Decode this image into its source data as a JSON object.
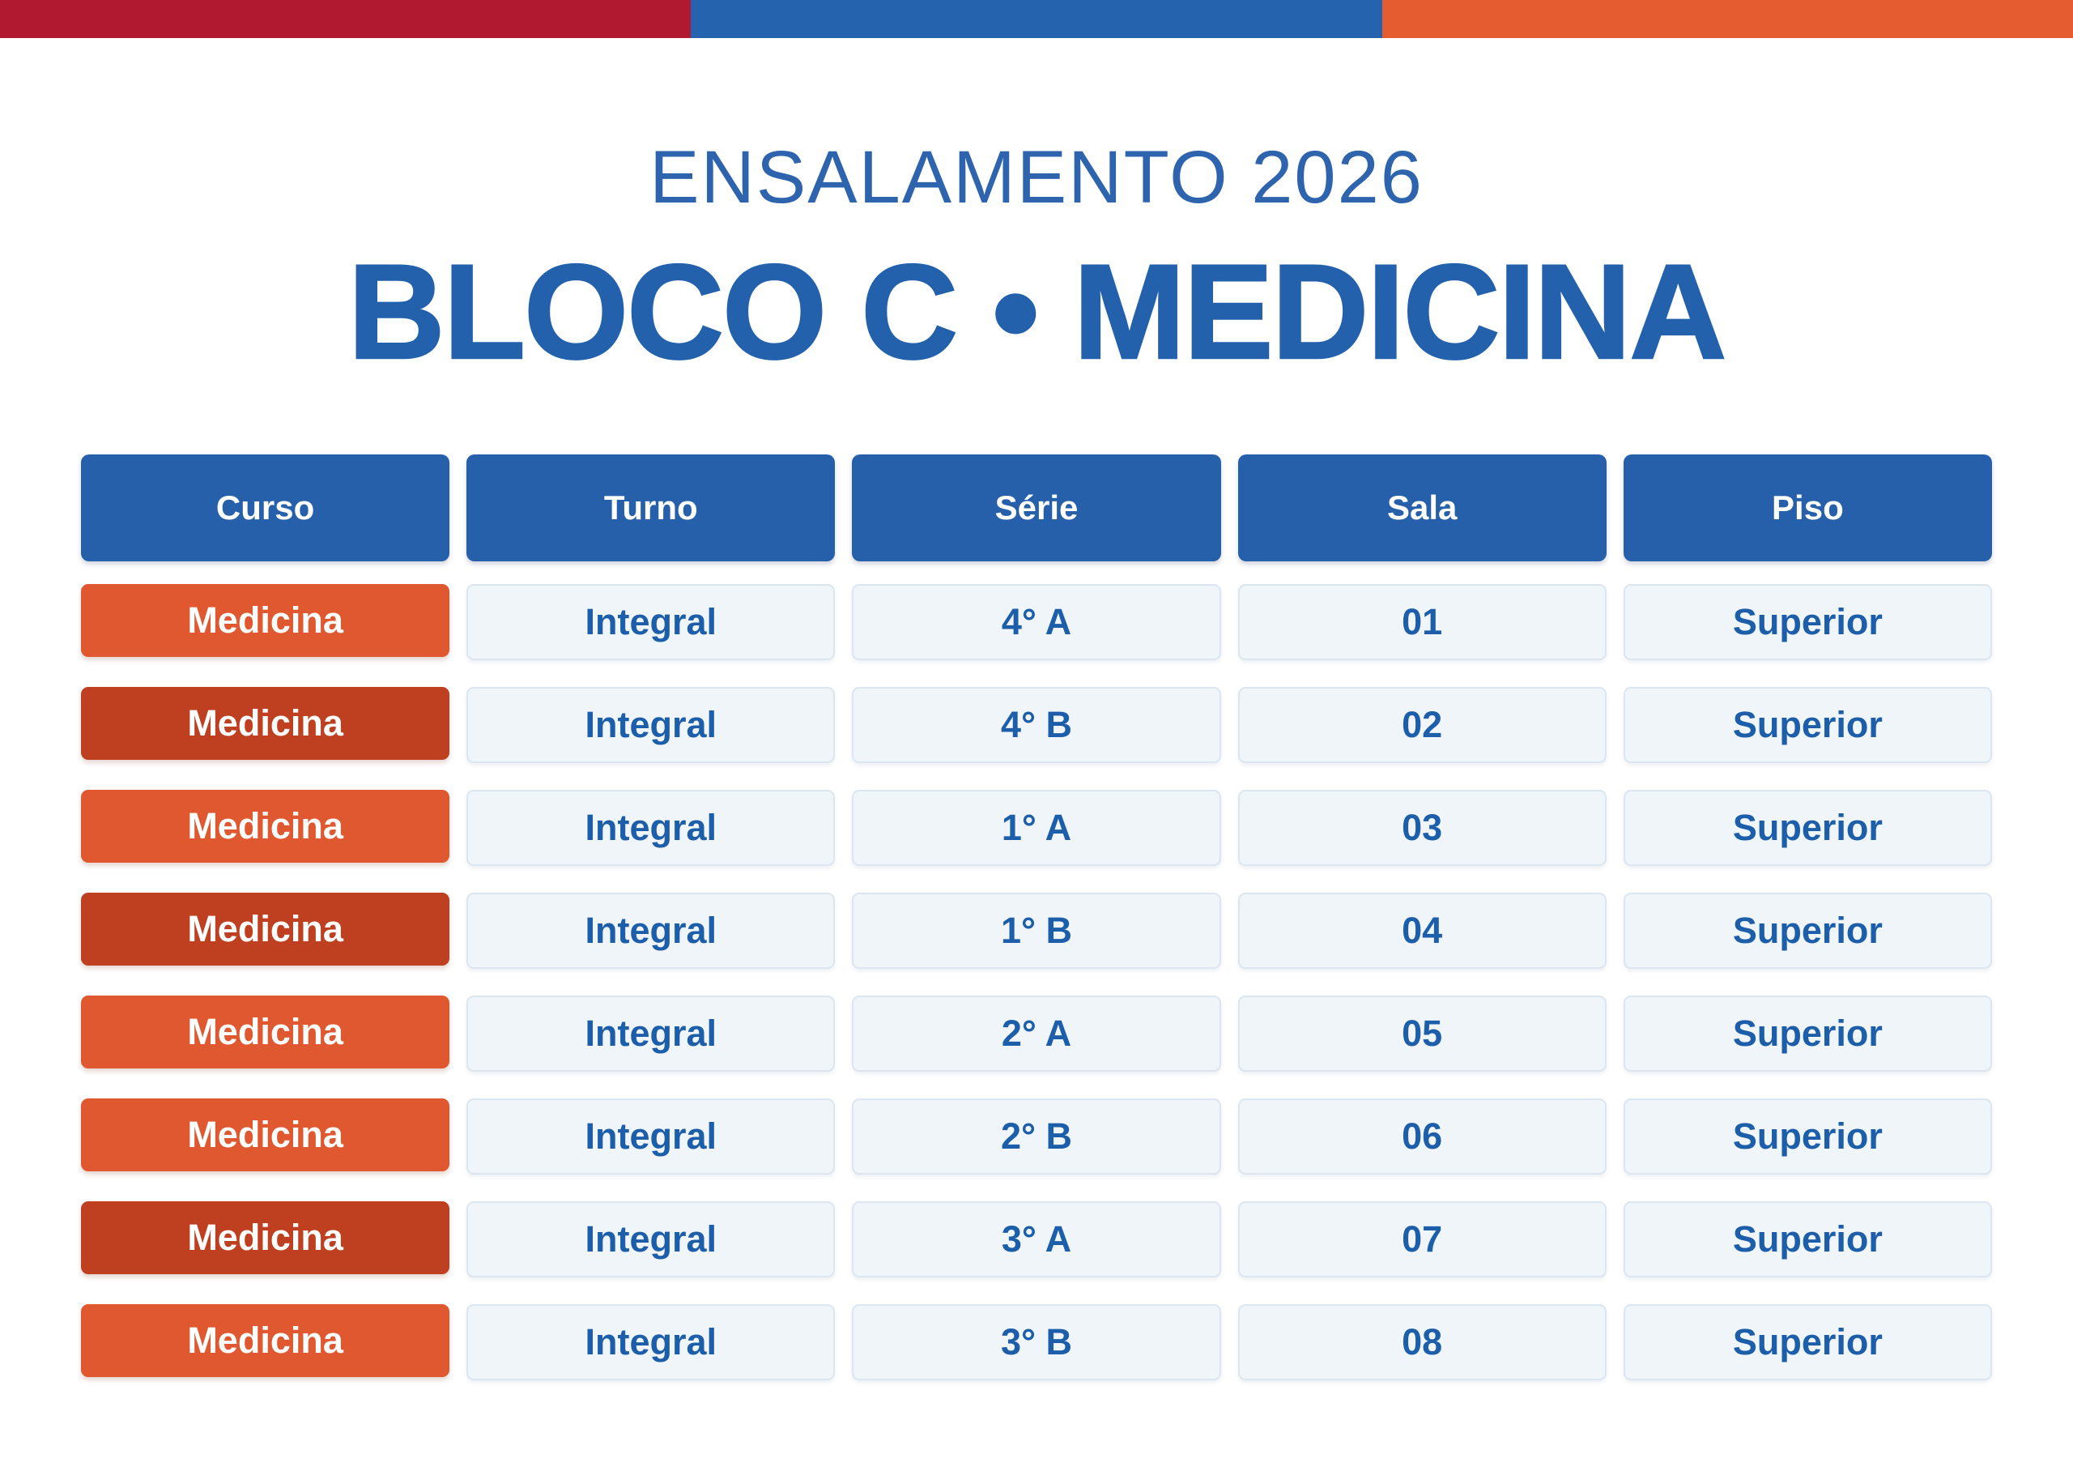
{
  "topbar": {
    "colors": [
      "#b11931",
      "#2563ae",
      "#e55c30"
    ],
    "segment_names": [
      "red",
      "blue",
      "orange"
    ]
  },
  "header": {
    "subtitle": "ENSALAMENTO 2026",
    "title": "BLOCO C • MEDICINA"
  },
  "colors": {
    "title_blue": "#2361ac",
    "header_cell_blue": "#2760aa",
    "curso_orange": "#e0582f",
    "curso_dark_orange": "#bf4021",
    "light_cell_bg": "#f0f5fa",
    "light_cell_border": "#dbe6f1",
    "cell_text_blue": "#1c5ea9"
  },
  "table": {
    "columns": [
      "Curso",
      "Turno",
      "Série",
      "Sala",
      "Piso"
    ],
    "rows": [
      {
        "curso": "Medicina",
        "turno": "Integral",
        "serie": "4° A",
        "sala": "01",
        "piso": "Superior",
        "curso_style": "light"
      },
      {
        "curso": "Medicina",
        "turno": "Integral",
        "serie": "4° B",
        "sala": "02",
        "piso": "Superior",
        "curso_style": "dark"
      },
      {
        "curso": "Medicina",
        "turno": "Integral",
        "serie": "1° A",
        "sala": "03",
        "piso": "Superior",
        "curso_style": "light"
      },
      {
        "curso": "Medicina",
        "turno": "Integral",
        "serie": "1° B",
        "sala": "04",
        "piso": "Superior",
        "curso_style": "dark"
      },
      {
        "curso": "Medicina",
        "turno": "Integral",
        "serie": "2° A",
        "sala": "05",
        "piso": "Superior",
        "curso_style": "light"
      },
      {
        "curso": "Medicina",
        "turno": "Integral",
        "serie": "2° B",
        "sala": "06",
        "piso": "Superior",
        "curso_style": "light"
      },
      {
        "curso": "Medicina",
        "turno": "Integral",
        "serie": "3° A",
        "sala": "07",
        "piso": "Superior",
        "curso_style": "dark"
      },
      {
        "curso": "Medicina",
        "turno": "Integral",
        "serie": "3° B",
        "sala": "08",
        "piso": "Superior",
        "curso_style": "light"
      }
    ]
  }
}
